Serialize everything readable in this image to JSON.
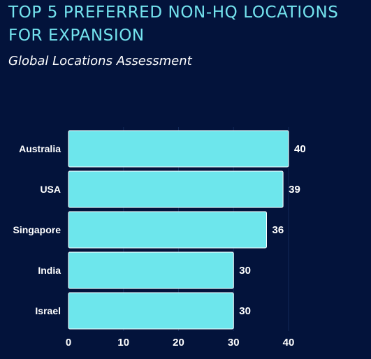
{
  "chart_data": {
    "type": "bar",
    "orientation": "horizontal",
    "title": "TOP 5 PREFERRED NON-HQ LOCATIONS FOR EXPANSION",
    "subtitle": "Global Locations Assessment",
    "categories": [
      "Australia",
      "USA",
      "Singapore",
      "India",
      "Israel"
    ],
    "values": [
      40,
      39,
      36,
      30,
      30
    ],
    "xlim": [
      0,
      40
    ],
    "xticks": [
      0,
      10,
      20,
      30,
      40
    ],
    "xlabel": "",
    "ylabel": "",
    "grid": true,
    "legend": "none",
    "colors": {
      "background": "#03133b",
      "bar": "#6de6ec",
      "bar_stroke": "#ffffff",
      "title": "#74e3ee",
      "text": "#ffffff",
      "grid": "#132a5a"
    }
  }
}
